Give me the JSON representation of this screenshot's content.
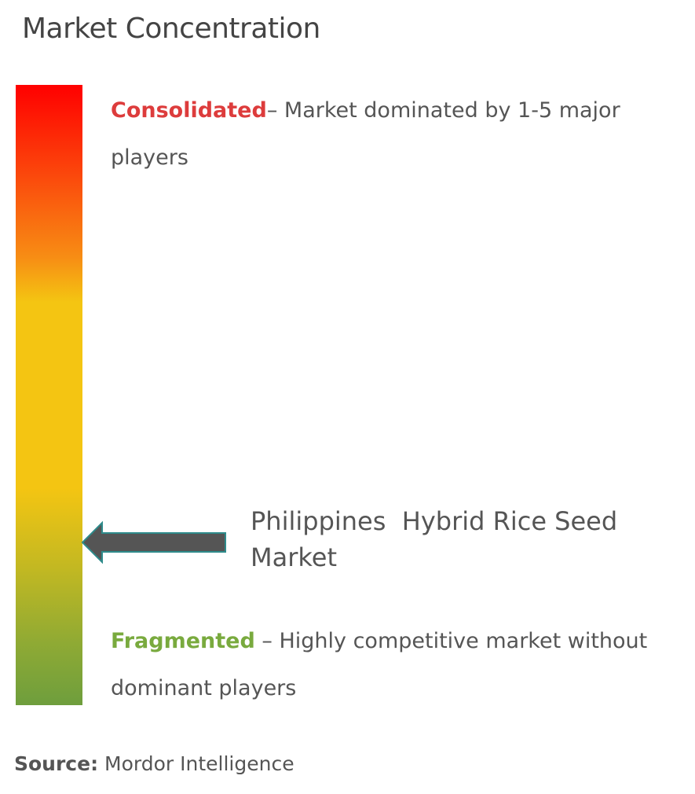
{
  "title": "Market Concentration",
  "consolidated": {
    "label": "Consolidated",
    "description": "– Market dominated by 1-5 major players"
  },
  "fragmented": {
    "label": "Fragmented",
    "description": " – Highly competitive market without dominant players"
  },
  "market": "Philippines  Hybrid Rice Seed Market",
  "source": {
    "label": "Source:",
    "text": " Mordor Intelligence"
  }
}
